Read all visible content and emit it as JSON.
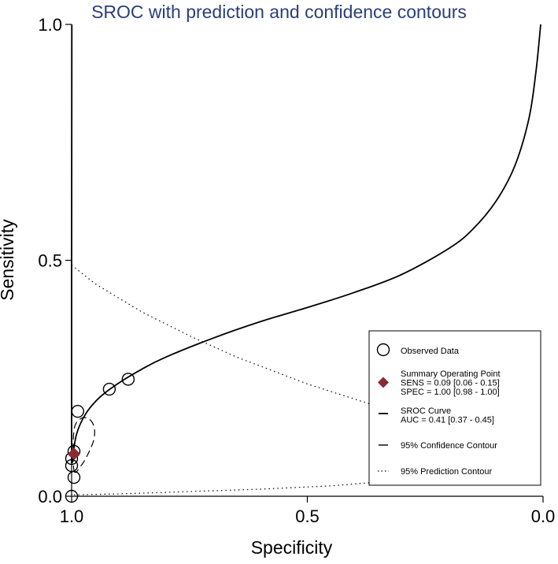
{
  "chart_data": {
    "type": "scatter",
    "title": "SROC with prediction and confidence contours",
    "xlabel": "Specificity",
    "ylabel": "Sensitivity",
    "xlim": [
      1.0,
      0.0
    ],
    "ylim": [
      0.0,
      1.0
    ],
    "x_reversed": true,
    "xticks": [
      1.0,
      0.5,
      0.0
    ],
    "xtick_labels": [
      "1.0",
      "0.5",
      "0.0"
    ],
    "yticks": [
      0.0,
      0.5,
      1.0
    ],
    "ytick_labels": [
      "0.0",
      "0.5",
      "1.0"
    ],
    "grid": false,
    "legend_position": "bottom-right",
    "observed_data": [
      {
        "specificity": 1.0,
        "sensitivity": 0.0
      },
      {
        "specificity": 0.995,
        "sensitivity": 0.04
      },
      {
        "specificity": 1.0,
        "sensitivity": 0.065
      },
      {
        "specificity": 1.0,
        "sensitivity": 0.08
      },
      {
        "specificity": 0.995,
        "sensitivity": 0.095
      },
      {
        "specificity": 0.987,
        "sensitivity": 0.18
      },
      {
        "specificity": 0.92,
        "sensitivity": 0.227
      },
      {
        "specificity": 0.88,
        "sensitivity": 0.248
      }
    ],
    "summary_operating_point": {
      "specificity": 0.995,
      "sensitivity": 0.09
    },
    "sroc_curve": [
      {
        "specificity": 0.999,
        "sensitivity": 0.07
      },
      {
        "specificity": 0.99,
        "sensitivity": 0.13
      },
      {
        "specificity": 0.97,
        "sensitivity": 0.175
      },
      {
        "specificity": 0.94,
        "sensitivity": 0.21
      },
      {
        "specificity": 0.9,
        "sensitivity": 0.24
      },
      {
        "specificity": 0.85,
        "sensitivity": 0.27
      },
      {
        "specificity": 0.8,
        "sensitivity": 0.295
      },
      {
        "specificity": 0.7,
        "sensitivity": 0.335
      },
      {
        "specificity": 0.6,
        "sensitivity": 0.37
      },
      {
        "specificity": 0.5,
        "sensitivity": 0.4
      },
      {
        "specificity": 0.4,
        "sensitivity": 0.432
      },
      {
        "specificity": 0.3,
        "sensitivity": 0.47
      },
      {
        "specificity": 0.2,
        "sensitivity": 0.525
      },
      {
        "specificity": 0.15,
        "sensitivity": 0.565
      },
      {
        "specificity": 0.1,
        "sensitivity": 0.625
      },
      {
        "specificity": 0.06,
        "sensitivity": 0.7
      },
      {
        "specificity": 0.03,
        "sensitivity": 0.8
      },
      {
        "specificity": 0.015,
        "sensitivity": 0.9
      },
      {
        "specificity": 0.005,
        "sensitivity": 1.0
      }
    ],
    "sroc_curve_left_branch": [
      {
        "specificity": 1.0,
        "sensitivity": 0.07
      },
      {
        "specificity": 1.0,
        "sensitivity": 0.5
      },
      {
        "specificity": 0.9995,
        "sensitivity": 1.0
      }
    ],
    "confidence_contour": [
      {
        "specificity": 0.995,
        "sensitivity": 0.055
      },
      {
        "specificity": 0.98,
        "sensitivity": 0.065
      },
      {
        "specificity": 0.965,
        "sensitivity": 0.09
      },
      {
        "specificity": 0.953,
        "sensitivity": 0.12
      },
      {
        "specificity": 0.952,
        "sensitivity": 0.145
      },
      {
        "specificity": 0.962,
        "sensitivity": 0.163
      },
      {
        "specificity": 0.98,
        "sensitivity": 0.165
      },
      {
        "specificity": 0.995,
        "sensitivity": 0.14
      }
    ],
    "prediction_contour_upper": [
      {
        "specificity": 1.0,
        "sensitivity": 0.49
      },
      {
        "specificity": 0.95,
        "sensitivity": 0.45
      },
      {
        "specificity": 0.85,
        "sensitivity": 0.39
      },
      {
        "specificity": 0.75,
        "sensitivity": 0.34
      },
      {
        "specificity": 0.65,
        "sensitivity": 0.295
      },
      {
        "specificity": 0.5,
        "sensitivity": 0.238
      },
      {
        "specificity": 0.35,
        "sensitivity": 0.19
      },
      {
        "specificity": 0.28,
        "sensitivity": 0.175
      }
    ],
    "prediction_contour_lower": [
      {
        "specificity": 0.995,
        "sensitivity": 0.003
      },
      {
        "specificity": 0.9,
        "sensitivity": 0.005
      },
      {
        "specificity": 0.75,
        "sensitivity": 0.01
      },
      {
        "specificity": 0.6,
        "sensitivity": 0.015
      },
      {
        "specificity": 0.45,
        "sensitivity": 0.022
      },
      {
        "specificity": 0.35,
        "sensitivity": 0.03
      },
      {
        "specificity": 0.3,
        "sensitivity": 0.037
      }
    ],
    "colors": {
      "title": "#2a3f77",
      "summary_point": "#8b2a35",
      "lines": "#000000"
    },
    "legend": [
      {
        "key": "observed",
        "lines": [
          "Observed Data"
        ]
      },
      {
        "key": "summary",
        "lines": [
          "Summary Operating Point",
          "SENS = 0.09 [0.06 - 0.15]",
          "SPEC = 1.00 [0.98 - 1.00]"
        ]
      },
      {
        "key": "sroc",
        "lines": [
          "SROC Curve",
          "AUC = 0.41 [0.37 - 0.45]"
        ]
      },
      {
        "key": "confidence",
        "lines": [
          "95% Confidence Contour"
        ]
      },
      {
        "key": "prediction",
        "lines": [
          "95% Prediction Contour"
        ]
      }
    ]
  }
}
